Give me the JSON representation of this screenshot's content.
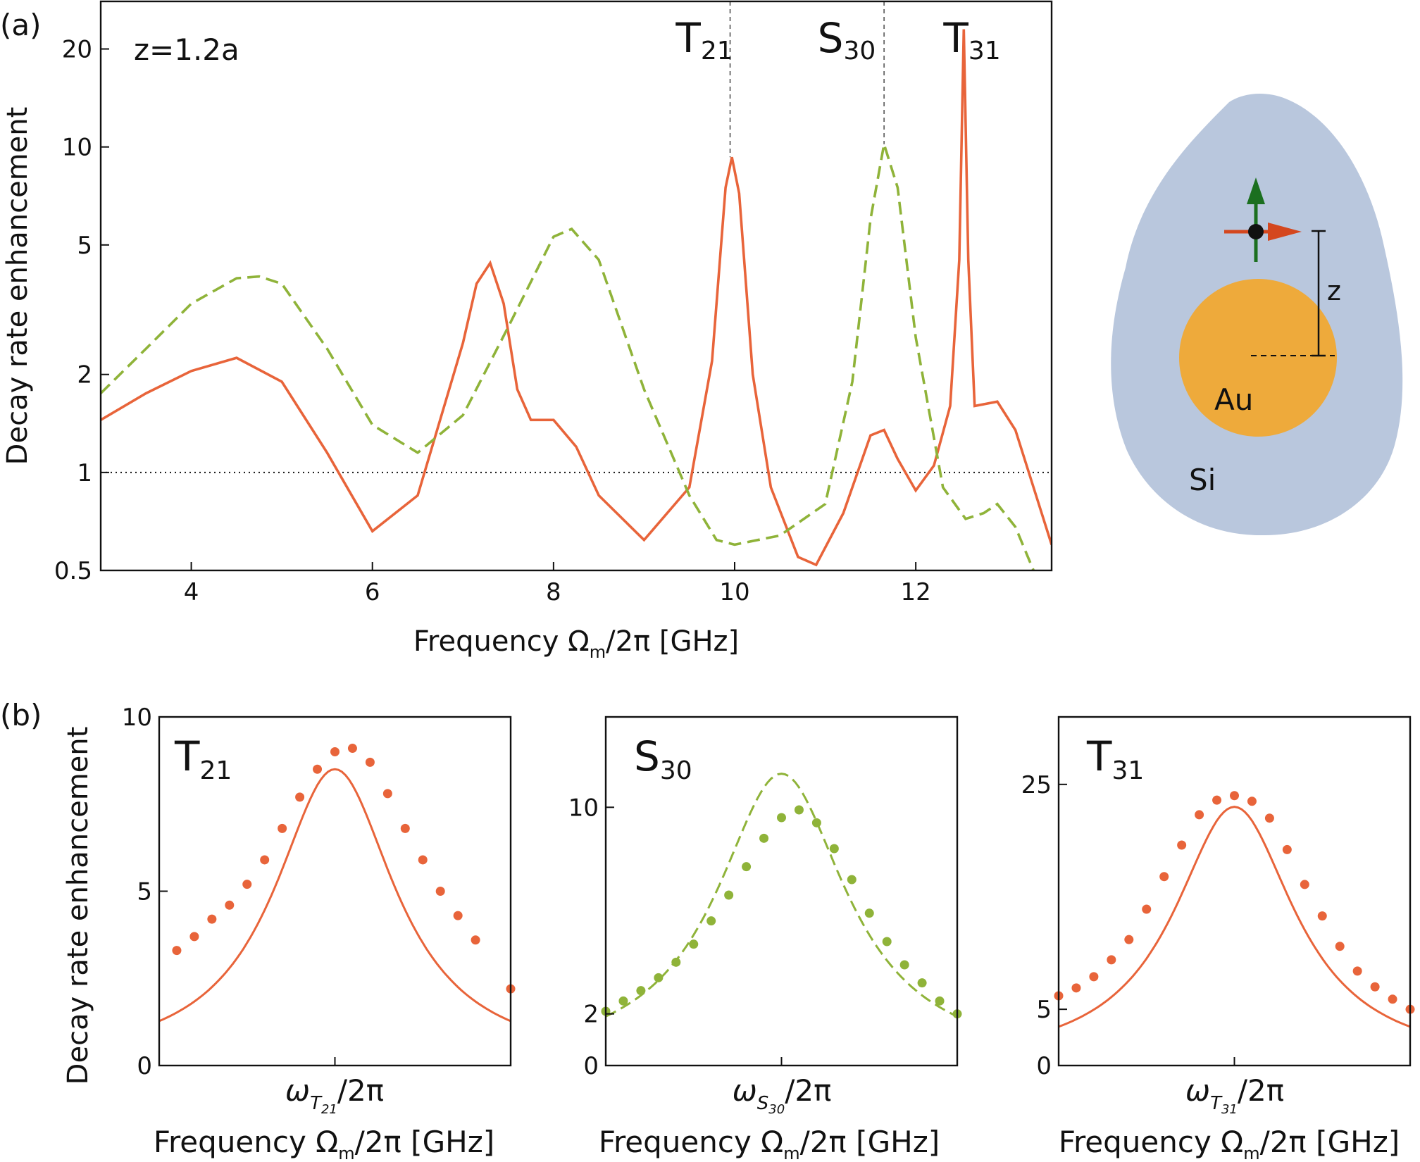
{
  "colors": {
    "orange": "#e8643a",
    "green": "#8fb339",
    "si": "#b9c7dd",
    "au": "#eeaa3b",
    "arrow_green": "#1b6f1f",
    "arrow_red": "#d4471e"
  },
  "figure": {
    "panel_a_label": "(a)",
    "panel_b_label": "(b)",
    "ylabel": "Decay rate enhancement",
    "xlabel": "Frequency Ω",
    "xlabel_sub": "m",
    "xlabel_tail": "/2π [GHz]"
  },
  "panel_a": {
    "annotation": "z=1.2a",
    "mode_labels": [
      {
        "base": "T",
        "sub": "21",
        "x": 9.95
      },
      {
        "base": "S",
        "sub": "30",
        "x": 11.65
      },
      {
        "base": "T",
        "sub": "31",
        "x": 12.55
      }
    ]
  },
  "schematic": {
    "particle_label": "Au",
    "medium_label": "Si",
    "distance_label": "z"
  },
  "chart_data": [
    {
      "type": "line",
      "panel": "(a)",
      "title": "",
      "xlabel": "Frequency Ωm/2π [GHz]",
      "ylabel": "Decay rate enhancement",
      "xlim": [
        3,
        13.5
      ],
      "ylim": [
        0.5,
        28
      ],
      "yscale": "log",
      "xticks": [
        4,
        6,
        8,
        10,
        12
      ],
      "yticks": [
        0.5,
        1,
        2,
        5,
        10,
        20
      ],
      "reference_line": {
        "y": 1,
        "style": "dotted"
      },
      "vertical_markers": [
        9.95,
        11.65
      ],
      "series": [
        {
          "style": "solid",
          "color": "orange",
          "x": [
            3.0,
            3.5,
            4.0,
            4.5,
            5.0,
            5.5,
            6.0,
            6.5,
            7.0,
            7.15,
            7.3,
            7.45,
            7.6,
            7.75,
            8.0,
            8.25,
            8.5,
            9.0,
            9.5,
            9.75,
            9.9,
            9.97,
            10.05,
            10.2,
            10.4,
            10.7,
            10.9,
            11.2,
            11.5,
            11.65,
            11.8,
            12.0,
            12.2,
            12.38,
            12.48,
            12.53,
            12.58,
            12.65,
            12.9,
            13.1,
            13.3,
            13.5
          ],
          "y": [
            1.45,
            1.75,
            2.05,
            2.25,
            1.9,
            1.15,
            0.66,
            0.85,
            2.5,
            3.8,
            4.4,
            3.3,
            1.8,
            1.45,
            1.45,
            1.2,
            0.85,
            0.62,
            0.9,
            2.2,
            7.5,
            9.3,
            7.2,
            2.0,
            0.9,
            0.55,
            0.52,
            0.75,
            1.3,
            1.35,
            1.1,
            0.88,
            1.05,
            1.6,
            4.5,
            23.0,
            4.5,
            1.6,
            1.65,
            1.35,
            0.9,
            0.6
          ]
        },
        {
          "style": "dashed",
          "color": "green",
          "x": [
            3.0,
            3.5,
            4.0,
            4.5,
            4.75,
            5.0,
            5.5,
            6.0,
            6.5,
            7.0,
            7.5,
            8.0,
            8.2,
            8.5,
            9.0,
            9.5,
            9.8,
            10.0,
            10.5,
            11.0,
            11.3,
            11.5,
            11.65,
            11.8,
            12.0,
            12.3,
            12.55,
            12.75,
            12.9,
            13.1,
            13.3
          ],
          "y": [
            1.75,
            2.4,
            3.3,
            3.95,
            4.0,
            3.8,
            2.4,
            1.4,
            1.15,
            1.5,
            2.8,
            5.3,
            5.6,
            4.5,
            1.8,
            0.85,
            0.62,
            0.6,
            0.64,
            0.8,
            1.9,
            6.0,
            10.2,
            7.5,
            2.6,
            0.9,
            0.72,
            0.75,
            0.8,
            0.68,
            0.5
          ]
        }
      ]
    },
    {
      "type": "line",
      "panel": "(b) T21",
      "title": "T21",
      "xlabel": "Frequency Ωm/2π [GHz]",
      "xtick_label": "ωT21/2π",
      "ylabel": "Decay rate enhancement",
      "xlim": [
        -10,
        10
      ],
      "ylim": [
        0,
        10
      ],
      "yticks": [
        0,
        5,
        10
      ],
      "line": {
        "style": "solid",
        "color": "orange",
        "peak": 8.5,
        "half_width": 4.2
      },
      "points": {
        "color": "orange",
        "x": [
          -9,
          -8,
          -7,
          -6,
          -5,
          -4,
          -3,
          -2,
          -1,
          0,
          1,
          2,
          3,
          4,
          5,
          6,
          7,
          8,
          10
        ],
        "y": [
          3.3,
          3.7,
          4.2,
          4.6,
          5.2,
          5.9,
          6.8,
          7.7,
          8.5,
          9.0,
          9.1,
          8.7,
          7.8,
          6.8,
          5.9,
          5.0,
          4.3,
          3.6,
          2.2
        ]
      }
    },
    {
      "type": "line",
      "panel": "(b) S30",
      "title": "S30",
      "xlabel": "Frequency Ωm/2π [GHz]",
      "xtick_label": "ωS30/2π",
      "xlim": [
        -10,
        10
      ],
      "ylim": [
        0,
        13.5
      ],
      "yticks": [
        0,
        2,
        10
      ],
      "line": {
        "style": "dashed",
        "color": "green",
        "peak": 11.3,
        "half_width": 4.5
      },
      "points": {
        "color": "green",
        "x": [
          -10,
          -9,
          -8,
          -7,
          -6,
          -5,
          -4,
          -3,
          -2,
          -1,
          0,
          1,
          2,
          3,
          4,
          5,
          6,
          7,
          8,
          9,
          10
        ],
        "y": [
          2.1,
          2.5,
          2.9,
          3.4,
          4.0,
          4.7,
          5.6,
          6.6,
          7.7,
          8.8,
          9.6,
          9.9,
          9.4,
          8.4,
          7.2,
          5.9,
          4.8,
          3.9,
          3.2,
          2.5,
          2.0
        ]
      }
    },
    {
      "type": "line",
      "panel": "(b) T31",
      "title": "T31",
      "xlabel": "Frequency Ωm/2π [GHz]",
      "xtick_label": "ωT31/2π",
      "xlim": [
        -10,
        10
      ],
      "ylim": [
        0,
        31
      ],
      "yticks": [
        0,
        5,
        25
      ],
      "line": {
        "style": "solid",
        "color": "orange",
        "peak": 23.0,
        "half_width": 4.2
      },
      "points": {
        "color": "orange",
        "x": [
          -10,
          -9,
          -8,
          -7,
          -6,
          -5,
          -4,
          -3,
          -2,
          -1,
          0,
          1,
          2,
          3,
          4,
          5,
          6,
          7,
          8,
          9,
          10
        ],
        "y": [
          6.2,
          6.9,
          7.9,
          9.4,
          11.2,
          13.9,
          16.8,
          19.6,
          22.3,
          23.6,
          24.0,
          23.5,
          22.0,
          19.2,
          16.1,
          13.3,
          10.6,
          8.4,
          7.0,
          5.9,
          5.0
        ]
      }
    }
  ]
}
